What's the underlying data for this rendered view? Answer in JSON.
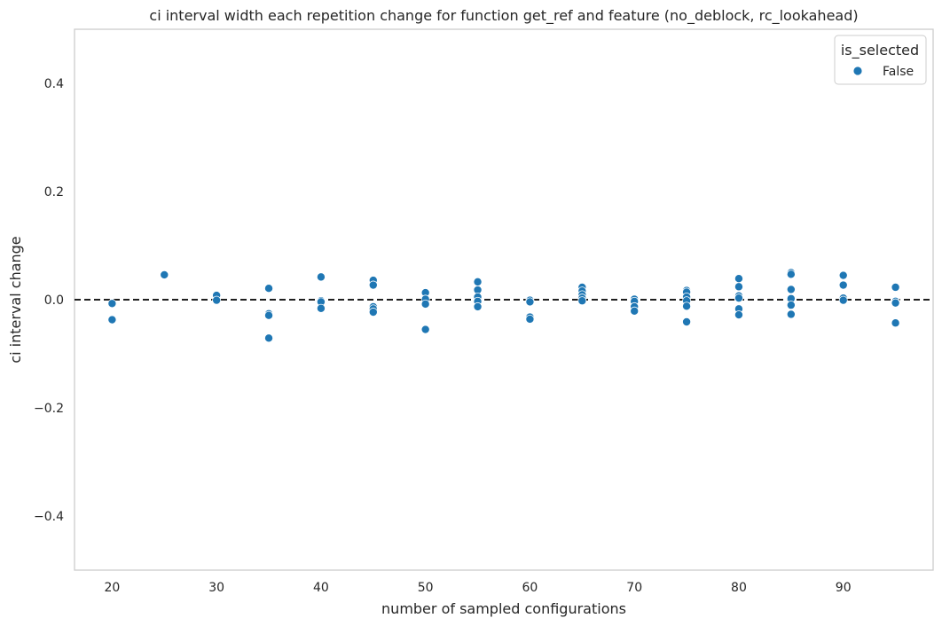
{
  "chart_data": {
    "type": "scatter",
    "title": "ci interval width each repetition change for function get_ref and feature (no_deblock, rc_lookahead)",
    "xlabel": "number of sampled configurations",
    "ylabel": "ci interval change",
    "xlim": [
      16.4,
      98.6
    ],
    "ylim": [
      -0.5,
      0.5
    ],
    "xticks": [
      20,
      30,
      40,
      50,
      60,
      70,
      80,
      90
    ],
    "xtick_labels": [
      "20",
      "30",
      "40",
      "50",
      "60",
      "70",
      "80",
      "90"
    ],
    "yticks": [
      0.4,
      0.2,
      0.0,
      -0.2,
      -0.4
    ],
    "ytick_labels": [
      "0.4",
      "0.2",
      "0.0",
      "−0.2",
      "−0.4"
    ],
    "grid": false,
    "reference_line": {
      "y": 0.0,
      "style": "dashed",
      "color": "#000000"
    },
    "legend": {
      "title": "is_selected",
      "position": "top-right",
      "entries": [
        {
          "label": "False",
          "color": "#1f77b4"
        }
      ]
    },
    "series": [
      {
        "name": "False",
        "color": "#1f77b4",
        "points": [
          [
            20,
            -0.007
          ],
          [
            20,
            -0.037
          ],
          [
            25,
            0.046
          ],
          [
            30,
            0.008
          ],
          [
            30,
            -0.001
          ],
          [
            35,
            0.021
          ],
          [
            35,
            -0.026
          ],
          [
            35,
            -0.029
          ],
          [
            35,
            -0.071
          ],
          [
            40,
            0.042
          ],
          [
            40,
            -0.002
          ],
          [
            40,
            -0.004
          ],
          [
            40,
            -0.016
          ],
          [
            45,
            0.036
          ],
          [
            45,
            0.027
          ],
          [
            45,
            -0.013
          ],
          [
            45,
            -0.017
          ],
          [
            45,
            -0.023
          ],
          [
            50,
            0.013
          ],
          [
            50,
            0.001
          ],
          [
            50,
            -0.008
          ],
          [
            50,
            -0.055
          ],
          [
            55,
            0.033
          ],
          [
            55,
            0.018
          ],
          [
            55,
            0.005
          ],
          [
            55,
            -0.003
          ],
          [
            55,
            -0.013
          ],
          [
            60,
            -0.001
          ],
          [
            60,
            -0.004
          ],
          [
            60,
            -0.032
          ],
          [
            60,
            -0.036
          ],
          [
            65,
            0.023
          ],
          [
            65,
            0.016
          ],
          [
            65,
            0.009
          ],
          [
            65,
            0.003
          ],
          [
            65,
            -0.002
          ],
          [
            70,
            0.001
          ],
          [
            70,
            -0.003
          ],
          [
            70,
            -0.013
          ],
          [
            70,
            -0.021
          ],
          [
            75,
            0.017
          ],
          [
            75,
            0.014
          ],
          [
            75,
            0.005
          ],
          [
            75,
            -0.002
          ],
          [
            75,
            -0.012
          ],
          [
            75,
            -0.041
          ],
          [
            80,
            0.039
          ],
          [
            80,
            0.024
          ],
          [
            80,
            0.007
          ],
          [
            80,
            0.003
          ],
          [
            80,
            -0.017
          ],
          [
            80,
            -0.028
          ],
          [
            85,
            0.05
          ],
          [
            85,
            0.047
          ],
          [
            85,
            0.019
          ],
          [
            85,
            0.002
          ],
          [
            85,
            -0.01
          ],
          [
            85,
            -0.027
          ],
          [
            90,
            0.045
          ],
          [
            90,
            0.027
          ],
          [
            90,
            0.003
          ],
          [
            90,
            -0.001
          ],
          [
            95,
            0.023
          ],
          [
            95,
            -0.003
          ],
          [
            95,
            -0.006
          ],
          [
            95,
            -0.043
          ]
        ]
      }
    ]
  }
}
